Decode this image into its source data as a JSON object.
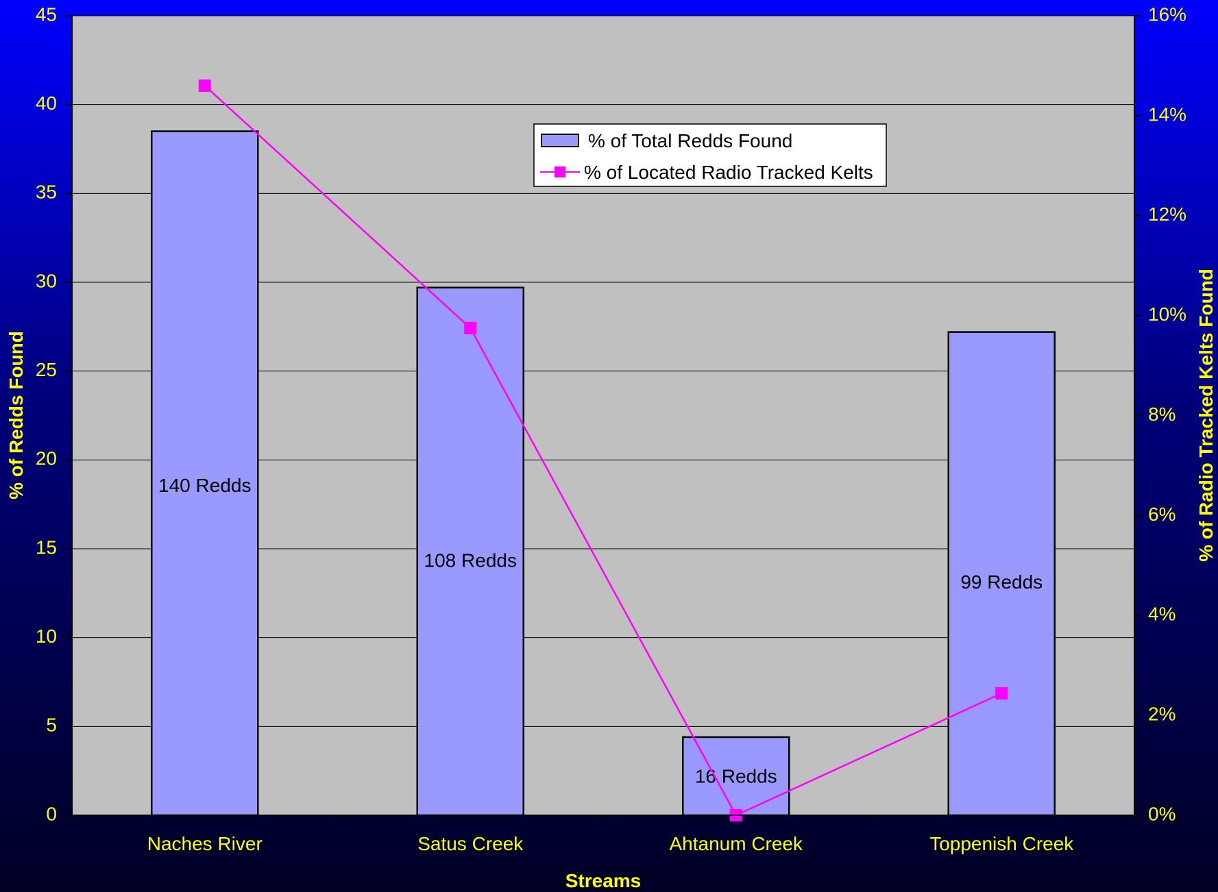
{
  "chart_data": {
    "type": "bar",
    "categories": [
      "Naches River",
      "Satus Creek",
      "Ahtanum Creek",
      "Toppenish Creek"
    ],
    "series": [
      {
        "name": "% of Total Redds Found",
        "kind": "bar",
        "axis": "left",
        "values": [
          38.5,
          29.7,
          4.4,
          27.2
        ],
        "data_labels": [
          "140 Redds",
          "108 Redds",
          "16 Redds",
          "99 Redds"
        ]
      },
      {
        "name": "% of Located Radio Tracked Kelts",
        "kind": "line",
        "axis": "right",
        "values": [
          0.146,
          0.0975,
          0.0,
          0.0244
        ]
      }
    ],
    "xlabel": "Streams",
    "ylabel": "% of Redds Found",
    "y2label": "% of Radio Tracked Kelts Found",
    "ylim": [
      0,
      45
    ],
    "y2lim": [
      0,
      0.16
    ],
    "yticks": [
      "0",
      "5",
      "10",
      "15",
      "20",
      "25",
      "30",
      "35",
      "40",
      "45"
    ],
    "y2ticks": [
      "0%",
      "2%",
      "4%",
      "6%",
      "8%",
      "10%",
      "12%",
      "14%",
      "16%"
    ],
    "grid": true,
    "legend_position": "top-center",
    "colors": {
      "plot_bg": "#c0c0c0",
      "bar_fill": "#9999ff",
      "line": "#ff00ff",
      "tick_text": "#ffff00"
    }
  }
}
